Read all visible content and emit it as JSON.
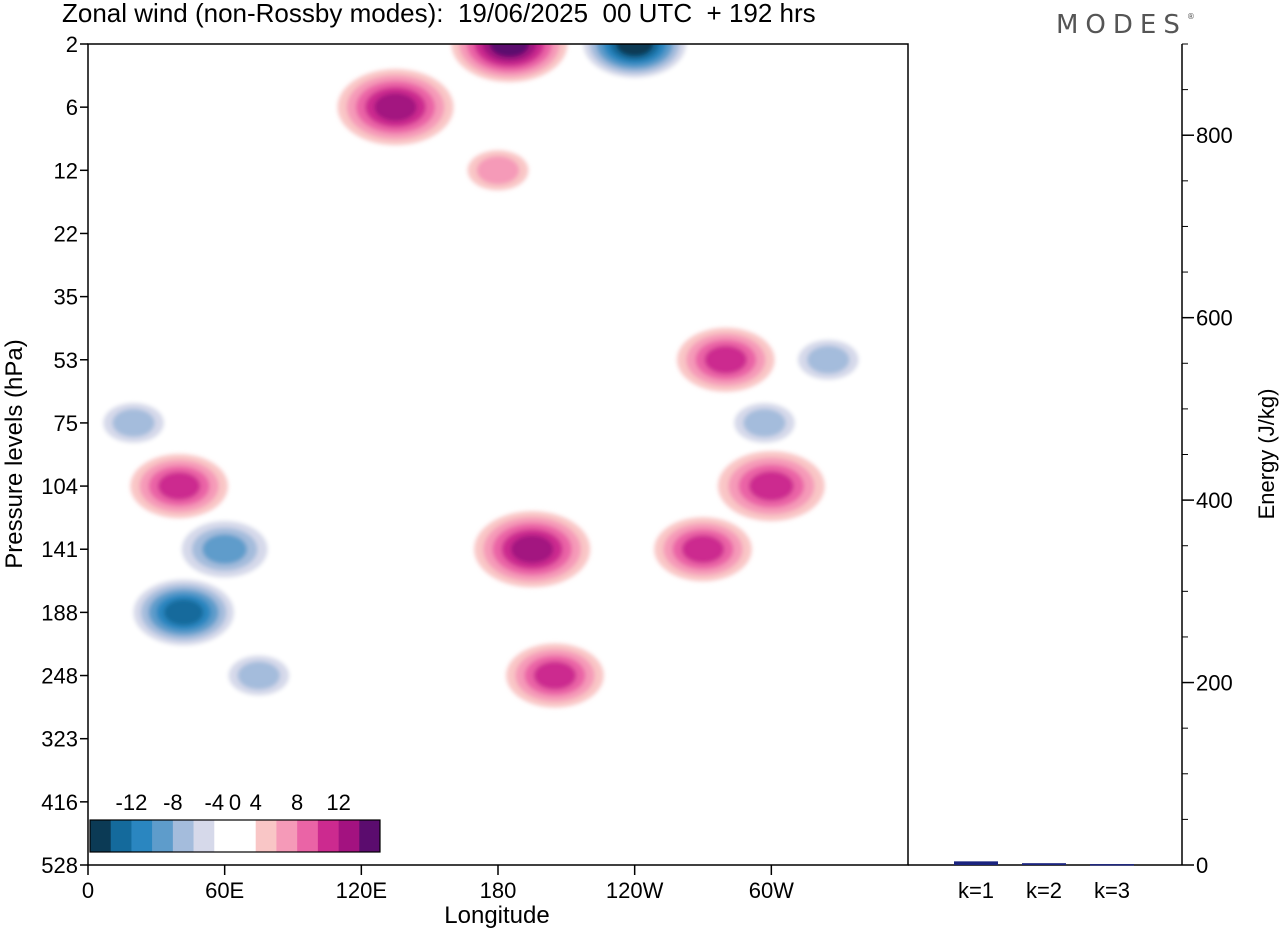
{
  "title": "Zonal wind (non-Rossby modes):  19/06/2025  00 UTC  + 192 hrs",
  "brand": "MODES",
  "brand_mark": "®",
  "chart_data": [
    {
      "type": "heatmap",
      "xlabel": "Longitude",
      "ylabel": "Pressure levels (hPa)",
      "x_ticks": [
        "0",
        "60E",
        "120E",
        "180",
        "120W",
        "60W"
      ],
      "x_tick_values": [
        0,
        60,
        120,
        180,
        240,
        300
      ],
      "xlim": [
        0,
        360
      ],
      "y_ticks": [
        "2",
        "6",
        "12",
        "22",
        "35",
        "53",
        "75",
        "104",
        "141",
        "188",
        "248",
        "323",
        "416",
        "528"
      ],
      "colorbar": {
        "labels": [
          "-12",
          "-8",
          "-4",
          "0",
          "4",
          "8",
          "12"
        ],
        "label_values": [
          -12,
          -8,
          -4,
          0,
          4,
          8,
          12
        ],
        "levels": [
          -14,
          -12,
          -10,
          -8,
          -6,
          -4,
          -2,
          2,
          4,
          6,
          8,
          10,
          12,
          14
        ],
        "colors": [
          "#0b3a55",
          "#146a9c",
          "#2a86c0",
          "#5e9ccb",
          "#a4bcdc",
          "#d6d9ea",
          "#ffffff",
          "#ffffff",
          "#f9c6c6",
          "#f59ab8",
          "#ea64a6",
          "#cc2a8f",
          "#a31280",
          "#5b0c6e"
        ]
      },
      "features": [
        {
          "lon": 42,
          "level": "188",
          "value": -13
        },
        {
          "lon": 60,
          "level": "141",
          "value": -9
        },
        {
          "lon": 75,
          "level": "248",
          "value": -6
        },
        {
          "lon": 40,
          "level": "104",
          "value": 8
        },
        {
          "lon": 20,
          "level": "75",
          "value": -6
        },
        {
          "lon": 195,
          "level": "141",
          "value": 11
        },
        {
          "lon": 205,
          "level": "248",
          "value": 8
        },
        {
          "lon": 270,
          "level": "141",
          "value": 8
        },
        {
          "lon": 300,
          "level": "104",
          "value": 9
        },
        {
          "lon": 280,
          "level": "53",
          "value": 8
        },
        {
          "lon": 297,
          "level": "75",
          "value": -6
        },
        {
          "lon": 325,
          "level": "53",
          "value": -6
        },
        {
          "lon": 240,
          "level": "2",
          "value": -14
        },
        {
          "lon": 185,
          "level": "2",
          "value": 12
        },
        {
          "lon": 135,
          "level": "6",
          "value": 10
        },
        {
          "lon": 180,
          "level": "12",
          "value": 4
        }
      ]
    },
    {
      "type": "bar",
      "ylabel": "Energy (J/kg)",
      "categories": [
        "k=1",
        "k=2",
        "k=3"
      ],
      "values": [
        4,
        2,
        1
      ],
      "ylim": [
        0,
        900
      ],
      "y_ticks": [
        0,
        200,
        400,
        600,
        800
      ],
      "bar_color": "#1a237e"
    }
  ]
}
